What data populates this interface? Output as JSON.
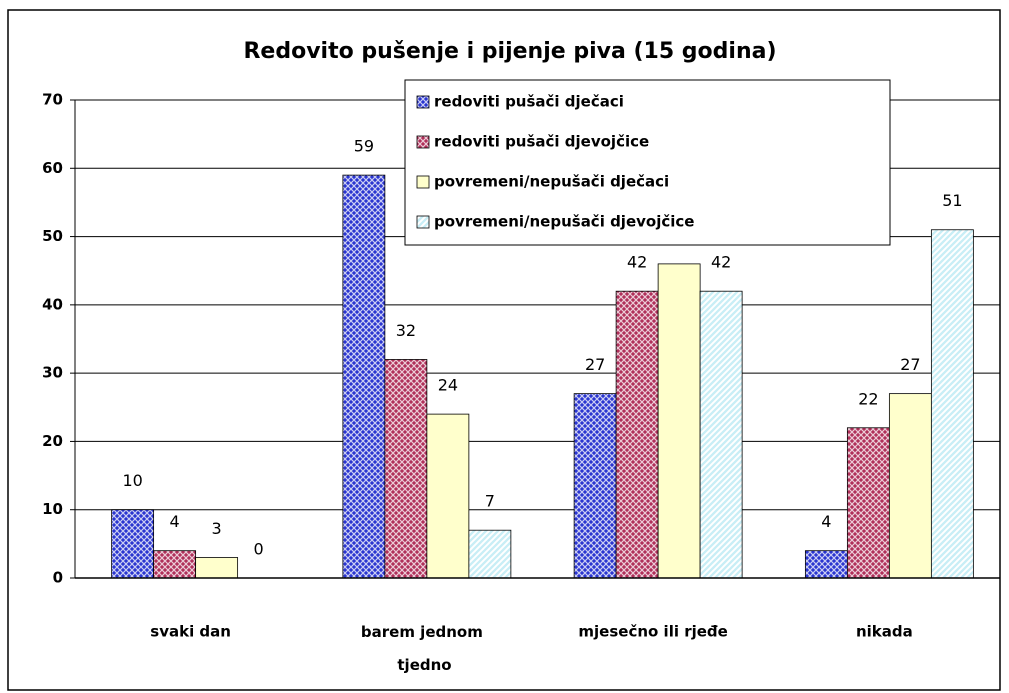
{
  "chart_data": {
    "type": "bar",
    "title": "Redovito pušenje i pijenje piva (15 godina)",
    "categories": [
      "svaki dan",
      "barem jednom tjedno",
      "mjesečno ili rjeđe",
      "nikada"
    ],
    "series": [
      {
        "name": "redoviti pušači dječaci",
        "color": "#2a35d0",
        "pattern": "crosshatch",
        "values": [
          10,
          59,
          27,
          4
        ]
      },
      {
        "name": "redoviti pušači djevojčice",
        "color": "#b0305a",
        "pattern": "crosshatch",
        "values": [
          4,
          32,
          42,
          22
        ]
      },
      {
        "name": "povremeni/nepušači dječaci",
        "color": "#ffffcc",
        "pattern": "solid",
        "values": [
          3,
          24,
          46,
          27
        ],
        "value_labels": [
          "3",
          "24",
          null,
          "27"
        ]
      },
      {
        "name": "povremeni/nepušači djevojčice",
        "color": "#c8eef6",
        "pattern": "diagonal",
        "values": [
          0,
          7,
          42,
          51
        ]
      }
    ],
    "ylim": [
      0,
      70
    ],
    "yticks": [
      0,
      10,
      20,
      30,
      40,
      50,
      60,
      70
    ],
    "grid": true,
    "legend": "upper right"
  }
}
